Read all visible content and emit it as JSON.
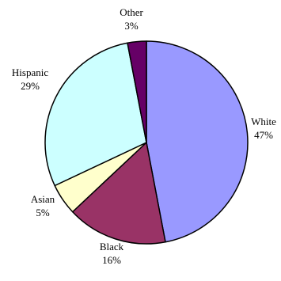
{
  "chart_data": {
    "type": "pie",
    "title": "",
    "slices": [
      {
        "label": "White",
        "percent_label": "47%",
        "value": 47,
        "color": "#9999ff"
      },
      {
        "label": "Black",
        "percent_label": "16%",
        "value": 16,
        "color": "#993366"
      },
      {
        "label": "Asian",
        "percent_label": "5%",
        "value": 5,
        "color": "#ffffcc"
      },
      {
        "label": "Hispanic",
        "percent_label": "29%",
        "value": 29,
        "color": "#ccffff"
      },
      {
        "label": "Other",
        "percent_label": "3%",
        "value": 3,
        "color": "#660066"
      }
    ],
    "start_angle_deg": 0,
    "direction": "clockwise",
    "legend": "none",
    "outline_color": "#000000"
  }
}
